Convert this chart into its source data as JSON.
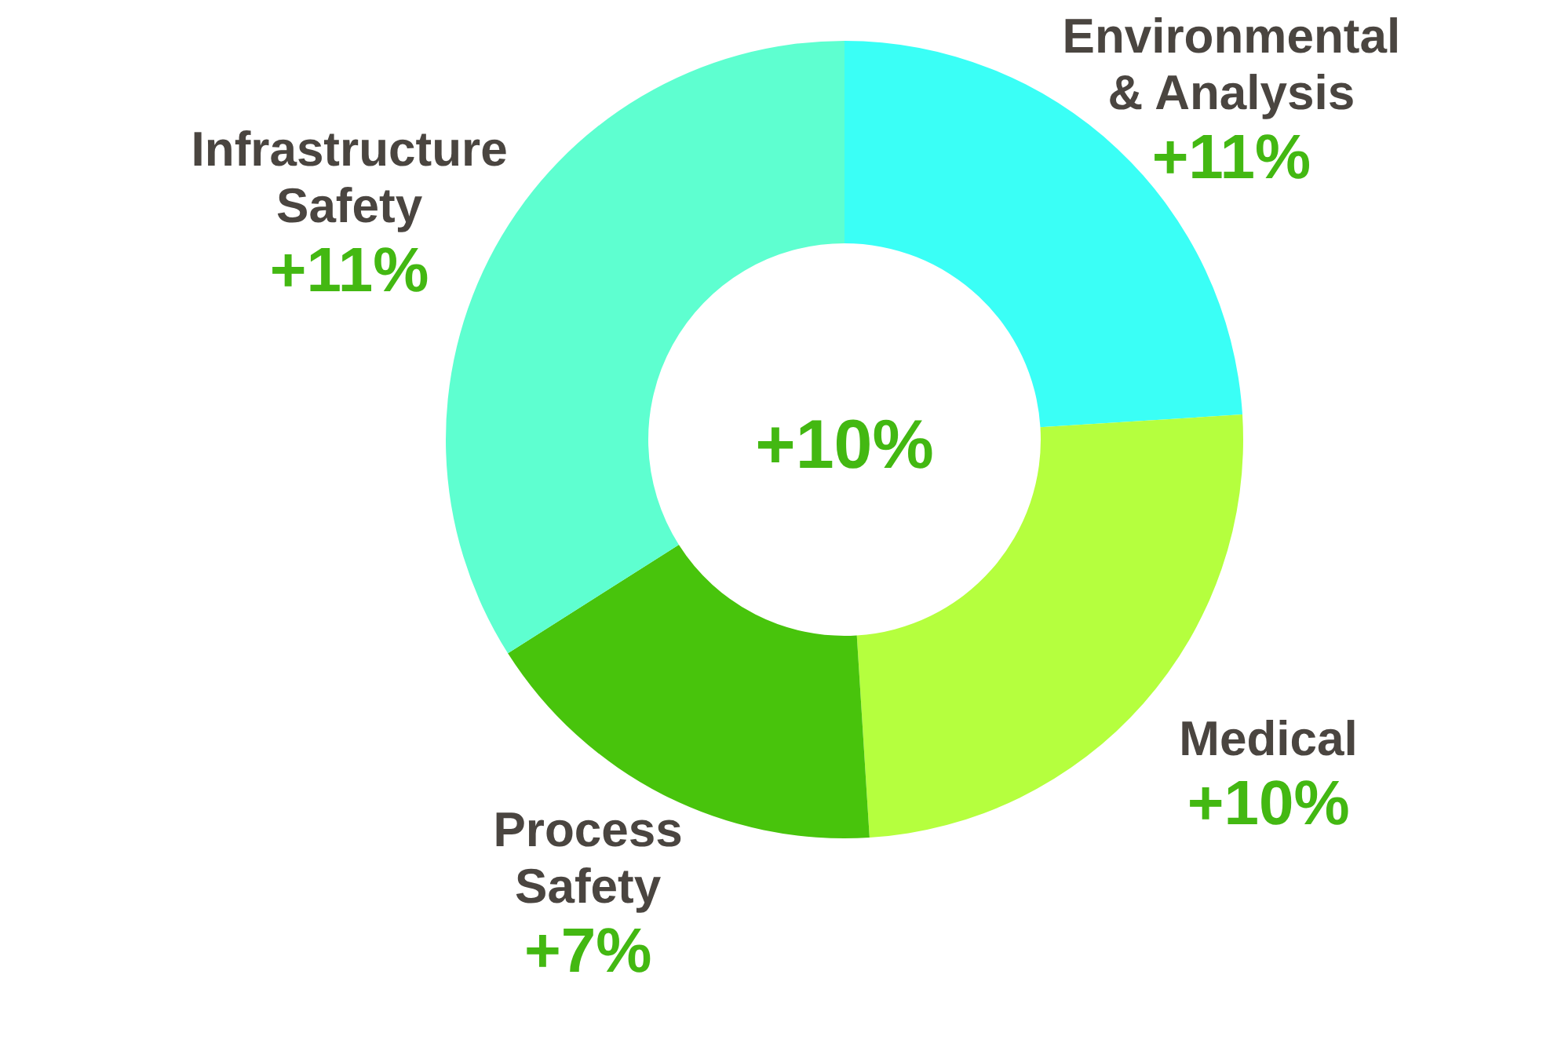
{
  "chart_data": {
    "type": "donut",
    "categories": [
      "Environmental & Analysis",
      "Medical",
      "Process Safety",
      "Infrastructure Safety"
    ],
    "values": [
      24,
      25,
      17,
      34
    ],
    "colors": [
      "#3afff6",
      "#b5ff3e",
      "#48c40c",
      "#5effd0"
    ],
    "annotations": [
      "+10%",
      "+11%",
      "+10%",
      "+7%",
      "+11%"
    ],
    "legend": false
  }
}
